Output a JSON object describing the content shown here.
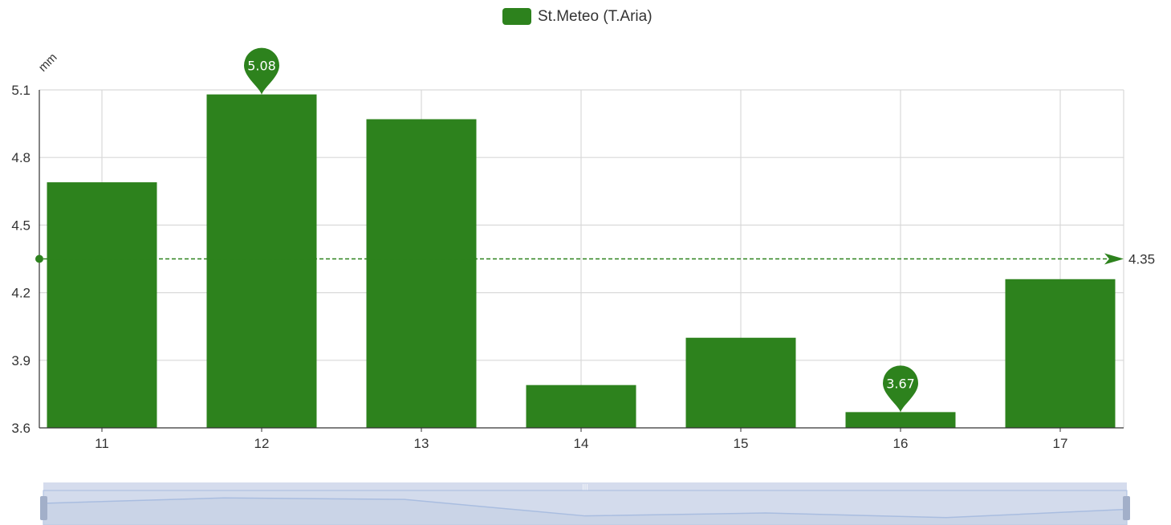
{
  "legend": {
    "label": "St.Meteo (T.Aria)"
  },
  "colors": {
    "series": "#2d821d",
    "grid": "#d9d9d9",
    "axis": "#333333",
    "zoom_fill": "#d3dbec",
    "zoom_border": "#a9bde0",
    "zoom_handle": "#a2afc9"
  },
  "chart_data": {
    "type": "bar",
    "title": "",
    "xlabel": "",
    "ylabel": "mm",
    "categories": [
      "11",
      "12",
      "13",
      "14",
      "15",
      "16",
      "17"
    ],
    "series": [
      {
        "name": "St.Meteo (T.Aria)",
        "values": [
          4.69,
          5.08,
          4.97,
          3.79,
          4.0,
          3.67,
          4.26
        ]
      }
    ],
    "ylim": [
      3.6,
      5.1
    ],
    "yticks": [
      "3.6",
      "3.9",
      "4.2",
      "4.5",
      "4.8",
      "5.1"
    ],
    "grid": true,
    "legend_position": "top-center",
    "markPoint": {
      "max": {
        "category": "12",
        "value": 5.08,
        "label": "5.08"
      },
      "min": {
        "category": "16",
        "value": 3.67,
        "label": "3.67"
      }
    },
    "markLine": {
      "type": "average",
      "value": 4.35,
      "label": "4.35"
    },
    "dataZoom": {
      "start": 0,
      "end": 100
    }
  }
}
